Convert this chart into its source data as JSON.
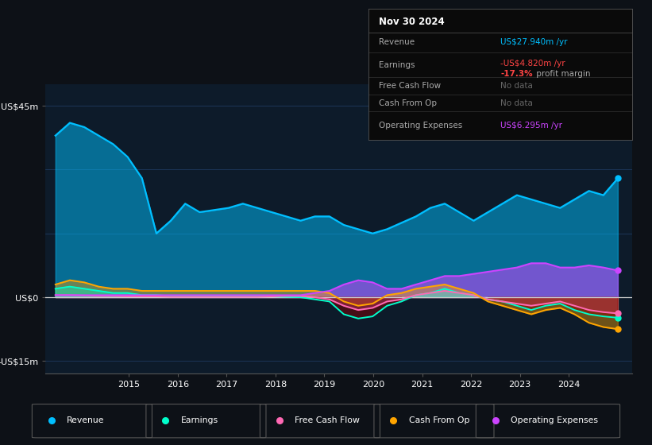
{
  "bg_color": "#0d1117",
  "plot_bg_color": "#0d1b2a",
  "grid_color": "#1e3a5f",
  "zero_line_color": "#cccccc",
  "ylim": [
    -18,
    50
  ],
  "colors": {
    "revenue": "#00bfff",
    "earnings": "#00ffcc",
    "free_cash_flow": "#ff69b4",
    "cash_from_op": "#ffa500",
    "operating_expenses": "#cc44ff"
  },
  "revenue": [
    38,
    41,
    40,
    38,
    36,
    33,
    28,
    15,
    18,
    22,
    20,
    20.5,
    21,
    22,
    21,
    20,
    19,
    18,
    19,
    19,
    17,
    16,
    15,
    16,
    17.5,
    19,
    21,
    22,
    20,
    18,
    20,
    22,
    24,
    23,
    22,
    21,
    23,
    25,
    24,
    27.94
  ],
  "earnings": [
    2,
    2.5,
    2,
    1.5,
    1,
    1,
    0.5,
    0.5,
    0.3,
    0.3,
    0.2,
    0.2,
    0.2,
    0.3,
    0.3,
    0.2,
    0.1,
    0.0,
    -0.5,
    -1,
    -4,
    -5,
    -4.5,
    -2,
    -1,
    0.5,
    1,
    2,
    1,
    0.5,
    -0.5,
    -1,
    -2,
    -3,
    -2,
    -1.5,
    -3,
    -4,
    -4.5,
    -4.82
  ],
  "free_cash_flow": [
    0.5,
    0.5,
    0.4,
    0.3,
    0.3,
    0.2,
    0.2,
    0.2,
    0.1,
    0.1,
    0.1,
    0.1,
    0.1,
    0.1,
    0.1,
    0.2,
    0.3,
    0.3,
    0.0,
    -0.5,
    -2,
    -3,
    -2.5,
    -1,
    -0.5,
    0.5,
    1,
    1.5,
    1,
    0.5,
    -0.5,
    -1,
    -1.5,
    -2,
    -1.5,
    -1,
    -2,
    -3,
    -3.5,
    -3.8
  ],
  "cash_from_op": [
    3,
    4,
    3.5,
    2.5,
    2,
    2,
    1.5,
    1.5,
    1.5,
    1.5,
    1.5,
    1.5,
    1.5,
    1.5,
    1.5,
    1.5,
    1.5,
    1.5,
    1.5,
    1.0,
    -1,
    -2,
    -1.5,
    0.5,
    1,
    2,
    2.5,
    3,
    2,
    1,
    -1,
    -2,
    -3,
    -4,
    -3,
    -2.5,
    -4,
    -6,
    -7,
    -7.5
  ],
  "operating_expenses": [
    0.5,
    0.5,
    0.5,
    0.5,
    0.5,
    0.5,
    0.5,
    0.5,
    0.5,
    0.5,
    0.5,
    0.5,
    0.5,
    0.5,
    0.5,
    0.5,
    0.5,
    0.5,
    1.0,
    1.5,
    3,
    4,
    3.5,
    2,
    2,
    3,
    4,
    5,
    5,
    5.5,
    6,
    6.5,
    7,
    8,
    8,
    7,
    7,
    7.5,
    7,
    6.295
  ],
  "info_box": {
    "date": "Nov 30 2024",
    "revenue_label": "Revenue",
    "revenue_value": "US$27.940m /yr",
    "revenue_color": "#00bfff",
    "earnings_label": "Earnings",
    "earnings_value": "-US$4.820m /yr",
    "earnings_color": "#ff4444",
    "margin_value": "-17.3%",
    "margin_text": " profit margin",
    "margin_color": "#ff4444",
    "fcf_label": "Free Cash Flow",
    "fcf_value": "No data",
    "cfop_label": "Cash From Op",
    "cfop_value": "No data",
    "opex_label": "Operating Expenses",
    "opex_value": "US$6.295m /yr",
    "opex_color": "#cc44ff",
    "nodata_color": "#666666"
  },
  "legend": [
    {
      "label": "Revenue",
      "color": "#00bfff"
    },
    {
      "label": "Earnings",
      "color": "#00ffcc"
    },
    {
      "label": "Free Cash Flow",
      "color": "#ff69b4"
    },
    {
      "label": "Cash From Op",
      "color": "#ffa500"
    },
    {
      "label": "Operating Expenses",
      "color": "#cc44ff"
    }
  ]
}
